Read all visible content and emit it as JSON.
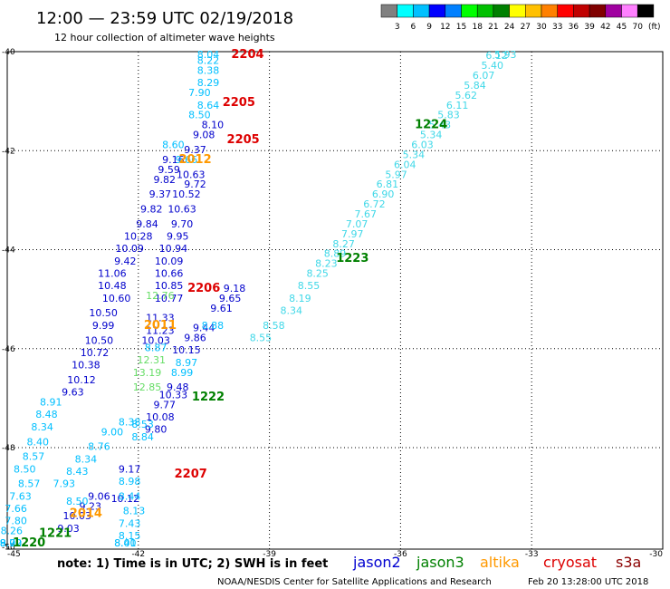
{
  "header": {
    "title": "12:00 — 23:59 UTC 02/19/2018",
    "subtitle": "12 hour collection of altimeter wave heights"
  },
  "colorbar": {
    "unit": "(ft)",
    "ticks": [
      "3",
      "6",
      "9",
      "12",
      "15",
      "18",
      "21",
      "24",
      "27",
      "30",
      "33",
      "36",
      "39",
      "42",
      "45",
      "70"
    ],
    "colors": [
      "#808080",
      "#00ffff",
      "#00c0ff",
      "#0000ff",
      "#0080ff",
      "#00ff00",
      "#00c000",
      "#008000",
      "#ffff00",
      "#ffc000",
      "#ff8000",
      "#ff0000",
      "#c00000",
      "#800000",
      "#a000a0",
      "#ff80ff",
      "#000000"
    ]
  },
  "footer": {
    "note": "note: 1) Time is in UTC; 2) SWH is in feet",
    "credit": "NOAA/NESDIS Center for Satellite Applications and Research",
    "timestamp": "Feb 20 13:28:00 UTC 2018"
  },
  "legend": [
    {
      "name": "jason2",
      "color": "#0000d0"
    },
    {
      "name": "jason3",
      "color": "#008000"
    },
    {
      "name": "altika",
      "color": "#ff9900"
    },
    {
      "name": "cryosat",
      "color": "#dd0000"
    },
    {
      "name": "s3a",
      "color": "#8b0000"
    }
  ],
  "chart_data": {
    "type": "scatter",
    "x_ticks": [
      "-45",
      "-42",
      "-39",
      "-36",
      "-33",
      "-30"
    ],
    "y_ticks": [
      "-40",
      "-42",
      "-44",
      "-46",
      "-48",
      "-50"
    ],
    "xlim": [
      -45,
      -30
    ],
    "ylim": [
      -50,
      -40
    ],
    "grid": true,
    "track_labels": [
      {
        "text": "2204",
        "color": "#dd0000",
        "x": -39.5,
        "y": -40.05
      },
      {
        "text": "2205",
        "color": "#dd0000",
        "x": -39.7,
        "y": -41.1
      },
      {
        "text": "2205",
        "color": "#dd0000",
        "x": -39.6,
        "y": -41.85
      },
      {
        "text": "2012",
        "color": "#ff9900",
        "x": -40.7,
        "y": -42.25
      },
      {
        "text": "1224",
        "color": "#008000",
        "x": -35.3,
        "y": -41.55
      },
      {
        "text": "1223",
        "color": "#008000",
        "x": -37.1,
        "y": -44.25
      },
      {
        "text": "2206",
        "color": "#dd0000",
        "x": -40.5,
        "y": -44.85
      },
      {
        "text": "2011",
        "color": "#ff9900",
        "x": -41.5,
        "y": -45.6
      },
      {
        "text": "1222",
        "color": "#008000",
        "x": -40.4,
        "y": -47.05
      },
      {
        "text": "2207",
        "color": "#dd0000",
        "x": -40.8,
        "y": -48.6
      },
      {
        "text": "2014",
        "color": "#ff9900",
        "x": -43.2,
        "y": -49.4
      },
      {
        "text": "1221",
        "color": "#008000",
        "x": -43.9,
        "y": -49.8
      },
      {
        "text": "1220",
        "color": "#008000",
        "x": -44.5,
        "y": -50.3
      }
    ],
    "series": [
      {
        "name": "jason2",
        "color": "#0000cc",
        "points": [
          {
            "x": -40.3,
            "y": -41.55,
            "v": "8.10"
          },
          {
            "x": -40.5,
            "y": -41.75,
            "v": "9.08"
          },
          {
            "x": -40.7,
            "y": -42.05,
            "v": "9.37"
          },
          {
            "x": -41.2,
            "y": -42.25,
            "v": "9.16"
          },
          {
            "x": -41.3,
            "y": -42.45,
            "v": "9.59"
          },
          {
            "x": -40.8,
            "y": -42.55,
            "v": "10.63"
          },
          {
            "x": -41.4,
            "y": -42.65,
            "v": "9.82"
          },
          {
            "x": -40.7,
            "y": -42.75,
            "v": "9.72"
          },
          {
            "x": -41.5,
            "y": -42.95,
            "v": "9.37"
          },
          {
            "x": -40.9,
            "y": -42.95,
            "v": "10.52"
          },
          {
            "x": -41.7,
            "y": -43.25,
            "v": "9.82"
          },
          {
            "x": -41.0,
            "y": -43.25,
            "v": "10.63"
          },
          {
            "x": -41.8,
            "y": -43.55,
            "v": "9.84"
          },
          {
            "x": -41.0,
            "y": -43.55,
            "v": "9.70"
          },
          {
            "x": -42.0,
            "y": -43.8,
            "v": "10.28"
          },
          {
            "x": -41.1,
            "y": -43.8,
            "v": "9.95"
          },
          {
            "x": -42.2,
            "y": -44.05,
            "v": "10.09"
          },
          {
            "x": -41.2,
            "y": -44.05,
            "v": "10.94"
          },
          {
            "x": -42.3,
            "y": -44.3,
            "v": "9.42"
          },
          {
            "x": -41.3,
            "y": -44.3,
            "v": "10.09"
          },
          {
            "x": -42.6,
            "y": -44.55,
            "v": "11.06"
          },
          {
            "x": -41.3,
            "y": -44.55,
            "v": "10.66"
          },
          {
            "x": -42.6,
            "y": -44.8,
            "v": "10.48"
          },
          {
            "x": -41.3,
            "y": -44.8,
            "v": "10.85"
          },
          {
            "x": -42.5,
            "y": -45.05,
            "v": "10.60"
          },
          {
            "x": -41.3,
            "y": -45.05,
            "v": "10.77"
          },
          {
            "x": -42.8,
            "y": -45.35,
            "v": "10.50"
          },
          {
            "x": -41.5,
            "y": -45.45,
            "v": "11.33"
          },
          {
            "x": -42.8,
            "y": -45.6,
            "v": "9.99"
          },
          {
            "x": -41.5,
            "y": -45.7,
            "v": "11.23"
          },
          {
            "x": -42.9,
            "y": -45.9,
            "v": "10.50"
          },
          {
            "x": -41.6,
            "y": -45.9,
            "v": "10.03"
          },
          {
            "x": -43.0,
            "y": -46.15,
            "v": "10.72"
          },
          {
            "x": -43.2,
            "y": -46.4,
            "v": "10.38"
          },
          {
            "x": -43.3,
            "y": -46.7,
            "v": "10.12"
          },
          {
            "x": -43.5,
            "y": -46.95,
            "v": "9.63"
          },
          {
            "x": -41.2,
            "y": -47.0,
            "v": "10.33"
          },
          {
            "x": -41.4,
            "y": -47.2,
            "v": "9.77"
          },
          {
            "x": -41.5,
            "y": -47.45,
            "v": "10.08"
          },
          {
            "x": -41.6,
            "y": -47.7,
            "v": "9.80"
          },
          {
            "x": -40.1,
            "y": -45.25,
            "v": "9.61"
          },
          {
            "x": -39.9,
            "y": -45.05,
            "v": "9.65"
          },
          {
            "x": -39.8,
            "y": -44.85,
            "v": "9.18"
          },
          {
            "x": -40.5,
            "y": -45.65,
            "v": "9.44"
          },
          {
            "x": -40.7,
            "y": -45.85,
            "v": "9.86"
          },
          {
            "x": -40.9,
            "y": -46.1,
            "v": "10.15"
          },
          {
            "x": -41.1,
            "y": -46.85,
            "v": "9.48"
          },
          {
            "x": -42.2,
            "y": -48.5,
            "v": "9.17"
          },
          {
            "x": -42.3,
            "y": -49.1,
            "v": "10.12"
          },
          {
            "x": -42.9,
            "y": -49.05,
            "v": "9.06"
          },
          {
            "x": -43.1,
            "y": -49.25,
            "v": "9.23"
          },
          {
            "x": -43.4,
            "y": -49.45,
            "v": "10.03"
          },
          {
            "x": -43.6,
            "y": -49.7,
            "v": "9.03"
          }
        ]
      },
      {
        "name": "jason3",
        "color": "#66dd66",
        "points": [
          {
            "x": -41.5,
            "y": -45.0,
            "v": "12.76"
          },
          {
            "x": -41.7,
            "y": -46.3,
            "v": "12.31"
          },
          {
            "x": -41.8,
            "y": -46.55,
            "v": "13.19"
          },
          {
            "x": -41.8,
            "y": -46.85,
            "v": "12.85"
          }
        ]
      },
      {
        "name": "altika",
        "color": "#00bfff",
        "points": [
          {
            "x": -40.4,
            "y": -40.05,
            "v": "8.04"
          },
          {
            "x": -40.4,
            "y": -40.25,
            "v": "8.22"
          },
          {
            "x": -40.4,
            "y": -40.45,
            "v": "8.38"
          },
          {
            "x": -40.4,
            "y": -40.7,
            "v": "8.29"
          },
          {
            "x": -40.6,
            "y": -40.9,
            "v": "7.90"
          },
          {
            "x": -40.4,
            "y": -41.15,
            "v": "8.64"
          },
          {
            "x": -40.6,
            "y": -41.35,
            "v": "8.50"
          },
          {
            "x": -41.2,
            "y": -41.95,
            "v": "8.60"
          },
          {
            "x": -40.9,
            "y": -42.25,
            "v": "9.66"
          },
          {
            "x": -40.3,
            "y": -45.6,
            "v": "8.88"
          },
          {
            "x": -41.6,
            "y": -46.05,
            "v": "8.87"
          },
          {
            "x": -40.9,
            "y": -46.35,
            "v": "8.97"
          },
          {
            "x": -41.0,
            "y": -46.55,
            "v": "8.99"
          },
          {
            "x": -44.0,
            "y": -47.15,
            "v": "8.91"
          },
          {
            "x": -44.1,
            "y": -47.4,
            "v": "8.48"
          },
          {
            "x": -44.2,
            "y": -47.65,
            "v": "8.34"
          },
          {
            "x": -44.3,
            "y": -47.95,
            "v": "8.40"
          },
          {
            "x": -44.4,
            "y": -48.25,
            "v": "8.57"
          },
          {
            "x": -44.6,
            "y": -48.5,
            "v": "8.50"
          },
          {
            "x": -44.5,
            "y": -48.8,
            "v": "8.57"
          },
          {
            "x": -44.7,
            "y": -49.05,
            "v": "7.63"
          },
          {
            "x": -44.8,
            "y": -49.3,
            "v": "7.66"
          },
          {
            "x": -44.8,
            "y": -49.55,
            "v": "7.80"
          },
          {
            "x": -44.9,
            "y": -49.75,
            "v": "8.26"
          },
          {
            "x": -45.0,
            "y": -50.0,
            "v": "9.00"
          },
          {
            "x": -45.1,
            "y": -50.2,
            "v": "8.70"
          },
          {
            "x": -45.3,
            "y": -50.35,
            "v": "8.92"
          },
          {
            "x": -43.4,
            "y": -49.15,
            "v": "8.50"
          },
          {
            "x": -42.9,
            "y": -48.05,
            "v": "8.76"
          },
          {
            "x": -43.2,
            "y": -48.3,
            "v": "8.34"
          },
          {
            "x": -43.4,
            "y": -48.55,
            "v": "8.43"
          },
          {
            "x": -43.7,
            "y": -48.8,
            "v": "7.93"
          },
          {
            "x": -42.6,
            "y": -47.75,
            "v": "9.00"
          },
          {
            "x": -42.2,
            "y": -47.55,
            "v": "8.38"
          },
          {
            "x": -41.9,
            "y": -47.6,
            "v": "8.53"
          },
          {
            "x": -41.9,
            "y": -47.85,
            "v": "8.84"
          },
          {
            "x": -42.2,
            "y": -48.75,
            "v": "8.98"
          },
          {
            "x": -42.2,
            "y": -49.05,
            "v": "8.44"
          },
          {
            "x": -42.1,
            "y": -49.35,
            "v": "8.13"
          },
          {
            "x": -42.2,
            "y": -49.6,
            "v": "7.43"
          },
          {
            "x": -42.2,
            "y": -49.85,
            "v": "8.15"
          },
          {
            "x": -42.3,
            "y": -50.1,
            "v": "8.41"
          },
          {
            "x": -42.3,
            "y": -50.35,
            "v": "8.00"
          }
        ]
      },
      {
        "name": "altika_northeast",
        "color": "#40d8e8",
        "points": [
          {
            "x": -33.6,
            "y": -39.95,
            "v": "5.93"
          },
          {
            "x": -33.8,
            "y": -40.15,
            "v": "6.12"
          },
          {
            "x": -33.9,
            "y": -40.35,
            "v": "5.40"
          },
          {
            "x": -34.1,
            "y": -40.55,
            "v": "6.07"
          },
          {
            "x": -34.3,
            "y": -40.75,
            "v": "5.84"
          },
          {
            "x": -34.5,
            "y": -40.95,
            "v": "5.62"
          },
          {
            "x": -34.7,
            "y": -41.15,
            "v": "6.11"
          },
          {
            "x": -34.9,
            "y": -41.35,
            "v": "5.83"
          },
          {
            "x": -35.1,
            "y": -41.55,
            "v": "5.43"
          },
          {
            "x": -35.3,
            "y": -41.75,
            "v": "5.34"
          },
          {
            "x": -35.5,
            "y": -41.95,
            "v": "6.03"
          },
          {
            "x": -35.7,
            "y": -42.15,
            "v": "5.34"
          },
          {
            "x": -35.9,
            "y": -42.35,
            "v": "6.04"
          },
          {
            "x": -36.1,
            "y": -42.55,
            "v": "5.97"
          },
          {
            "x": -36.3,
            "y": -42.75,
            "v": "6.81"
          },
          {
            "x": -36.4,
            "y": -42.95,
            "v": "6.90"
          },
          {
            "x": -36.6,
            "y": -43.15,
            "v": "6.72"
          },
          {
            "x": -36.8,
            "y": -43.35,
            "v": "7.67"
          },
          {
            "x": -37.0,
            "y": -43.55,
            "v": "7.07"
          },
          {
            "x": -37.1,
            "y": -43.75,
            "v": "7.97"
          },
          {
            "x": -37.3,
            "y": -43.95,
            "v": "8.27"
          },
          {
            "x": -37.5,
            "y": -44.15,
            "v": "8.89"
          },
          {
            "x": -37.7,
            "y": -44.35,
            "v": "8.23"
          },
          {
            "x": -37.9,
            "y": -44.55,
            "v": "8.25"
          },
          {
            "x": -38.1,
            "y": -44.8,
            "v": "8.55"
          },
          {
            "x": -38.3,
            "y": -45.05,
            "v": "8.19"
          },
          {
            "x": -38.5,
            "y": -45.3,
            "v": "8.34"
          },
          {
            "x": -38.9,
            "y": -45.6,
            "v": "8.58"
          },
          {
            "x": -39.2,
            "y": -45.85,
            "v": "8.55"
          }
        ]
      }
    ]
  }
}
